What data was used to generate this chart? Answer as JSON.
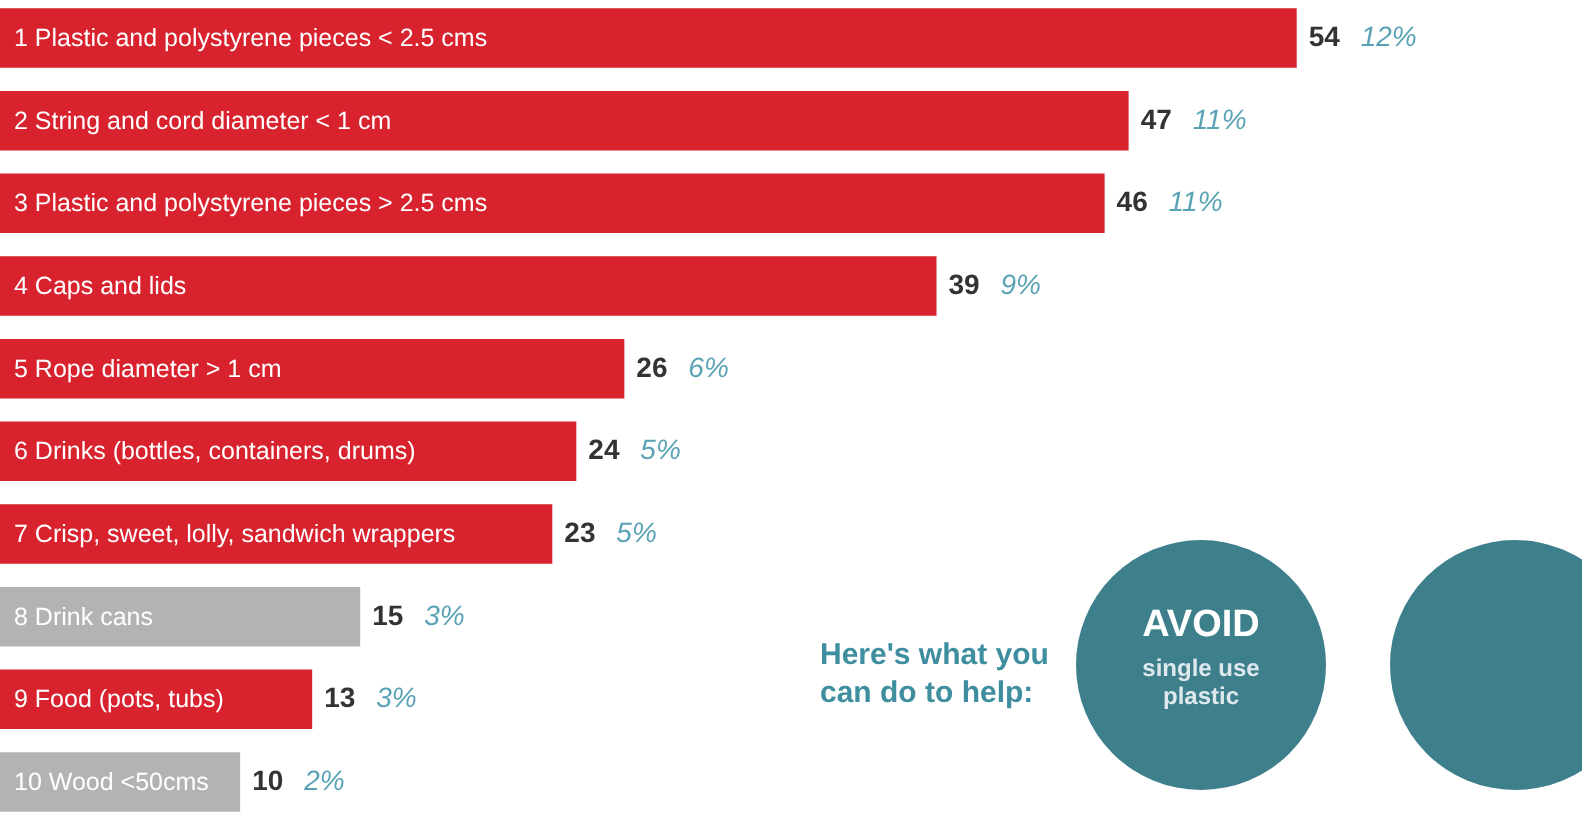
{
  "chart_data": {
    "type": "bar",
    "orientation": "horizontal",
    "categories": [
      "1 Plastic and polystyrene pieces < 2.5 cms",
      "2 String and cord diameter < 1 cm",
      "3 Plastic and polystyrene pieces > 2.5 cms",
      "4 Caps and lids",
      "5 Rope diameter > 1 cm",
      "6 Drinks (bottles, containers, drums)",
      "7 Crisp, sweet, lolly, sandwich wrappers",
      "8 Drink cans",
      "9 Food (pots, tubs)",
      "10 Wood <50cms"
    ],
    "values": [
      54,
      47,
      46,
      39,
      26,
      24,
      23,
      15,
      13,
      10
    ],
    "colors": [
      "#d8232f",
      "#d8232f",
      "#d8232f",
      "#d8232f",
      "#d8232f",
      "#d8232f",
      "#d8232f",
      "#b3b3b3",
      "#d8232f",
      "#b3b3b3"
    ],
    "data_labels": true,
    "annotations": [
      "Here's what you can do to help:",
      "AVOID",
      "single use plastic",
      {
        "text": "12%",
        "x": 54,
        "y": "1 Plastic and polystyrene pieces < 2.5 cms"
      },
      {
        "text": "11%",
        "x": 47,
        "y": "2 String and cord diameter < 1 cm"
      },
      {
        "text": "11%",
        "x": 46,
        "y": "3 Plastic and polystyrene pieces > 2.5 cms"
      },
      {
        "text": "9%",
        "x": 39,
        "y": "4 Caps and lids"
      },
      {
        "text": "6%",
        "x": 26,
        "y": "5 Rope diameter > 1 cm"
      },
      {
        "text": "5%",
        "x": 24,
        "y": "6 Drinks (bottles, containers, drums)"
      },
      {
        "text": "5%",
        "x": 23,
        "y": "7 Crisp, sweet, lolly, sandwich wrappers"
      },
      {
        "text": "3%",
        "x": 15,
        "y": "8 Drink cans"
      },
      {
        "text": "3%",
        "x": 13,
        "y": "9 Food (pots, tubs)"
      },
      {
        "text": "2%",
        "x": 10,
        "y": "10 Wood <50cms"
      }
    ]
  }
}
